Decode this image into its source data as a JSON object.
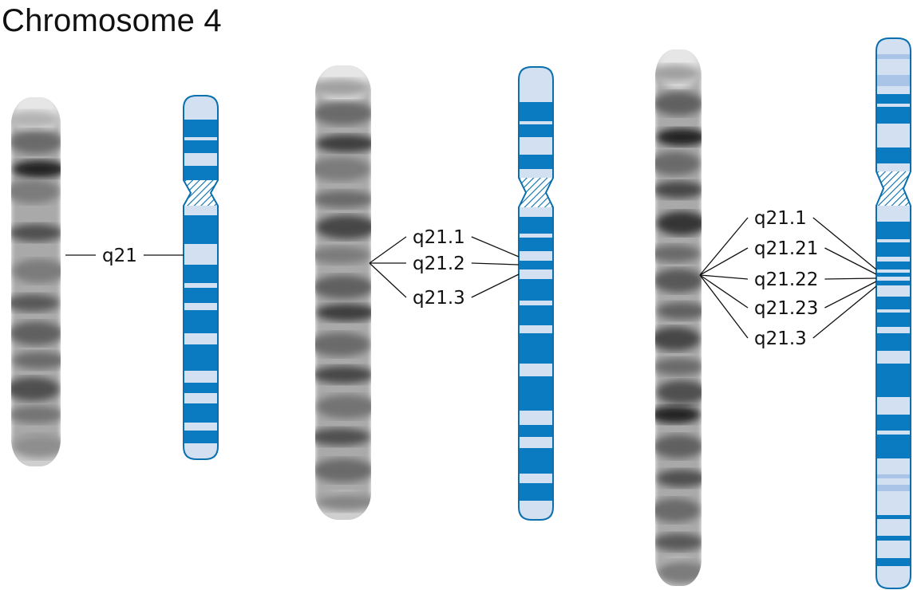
{
  "title": "Chromosome 4",
  "colors": {
    "dark_band": "#0a7bc1",
    "light_band": "#d3e0f2",
    "mid_band": "#a9c4e6",
    "outline": "#0a6fae",
    "leader_line": "#111111"
  },
  "resolutions": [
    {
      "labels": [
        "q21"
      ]
    },
    {
      "labels": [
        "q21.1",
        "q21.2",
        "q21.3"
      ]
    },
    {
      "labels": [
        "q21.1",
        "q21.21",
        "q21.22",
        "q21.23",
        "q21.3"
      ]
    }
  ]
}
